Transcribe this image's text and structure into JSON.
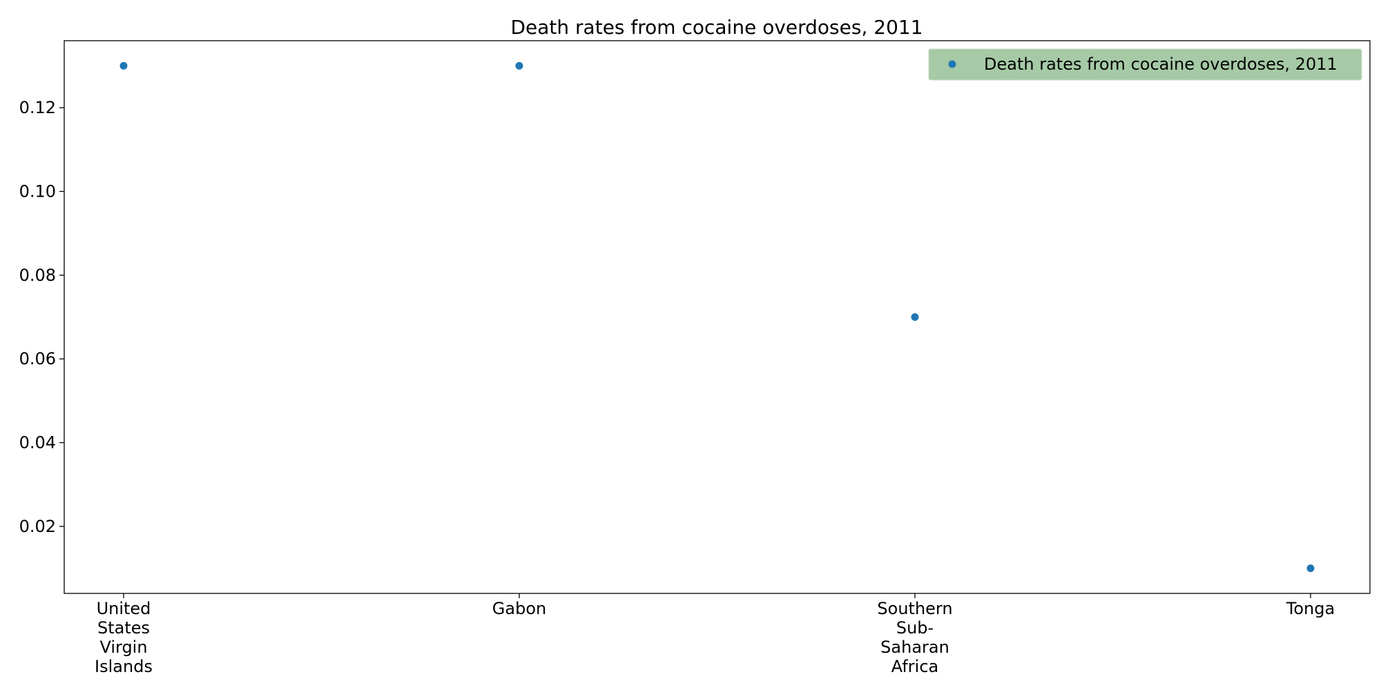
{
  "chart_data": {
    "type": "scatter",
    "title": "Death rates from cocaine overdoses, 2011",
    "xlabel": "",
    "ylabel": "",
    "categories": [
      [
        "United",
        "States",
        "Virgin",
        "Islands"
      ],
      [
        "Gabon"
      ],
      [
        "Southern",
        "Sub-",
        "Saharan",
        "Africa"
      ],
      [
        "Tonga"
      ]
    ],
    "series": [
      {
        "name": "Death rates from cocaine overdoses, 2011",
        "values": [
          0.13,
          0.13,
          0.07,
          0.01
        ],
        "color": "#1f77b4"
      }
    ],
    "yticks": [
      "0.02",
      "0.04",
      "0.06",
      "0.08",
      "0.10",
      "0.12"
    ],
    "ylim": [
      0.004,
      0.136
    ],
    "grid": false,
    "legend": {
      "placement": "top-right",
      "background": "#a6caa6"
    }
  }
}
